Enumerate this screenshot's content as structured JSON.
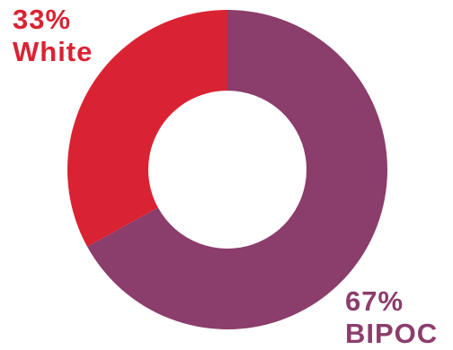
{
  "chart_data": {
    "type": "pie",
    "donut": true,
    "title": "",
    "slices": [
      {
        "label": "BIPOC",
        "value": 67,
        "display_pct": "67%",
        "color": "#8B3D6B"
      },
      {
        "label": "White",
        "value": 33,
        "display_pct": "33%",
        "color": "#D92333"
      }
    ],
    "legend": "none",
    "label_placement": "outside-near-slice"
  }
}
